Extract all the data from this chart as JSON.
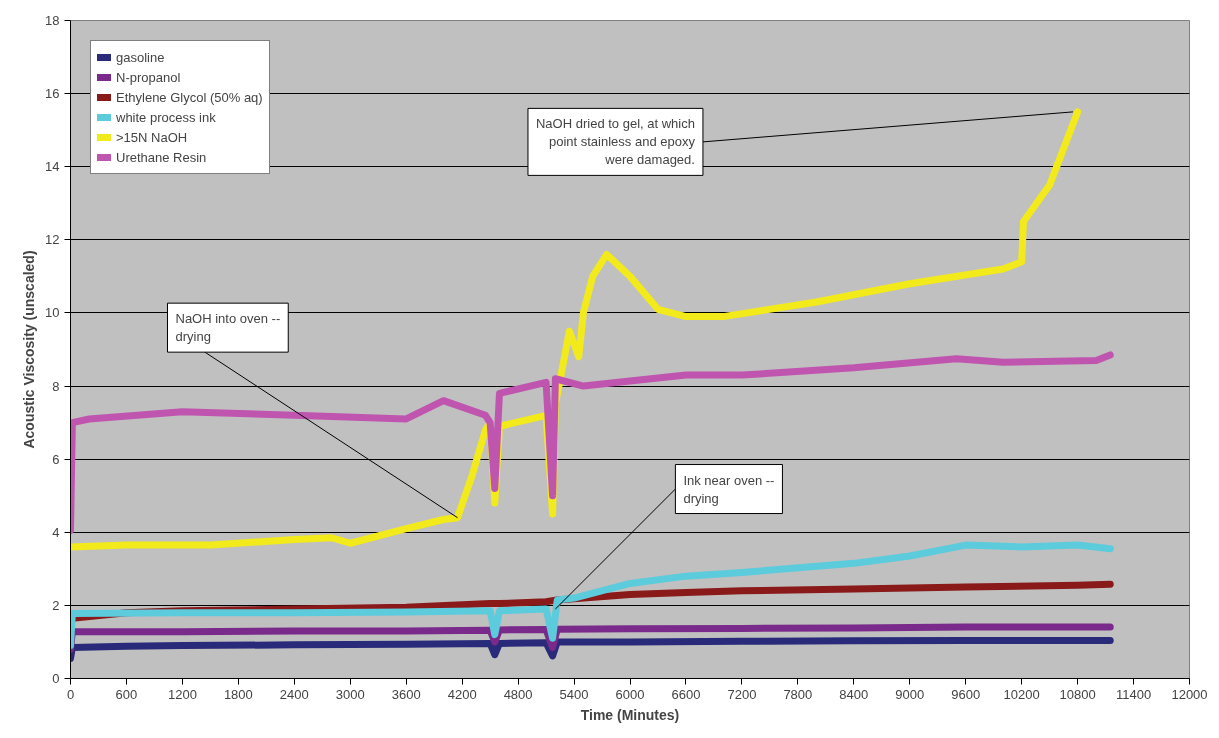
{
  "chart_data": {
    "type": "line",
    "xlabel": "Time (Minutes)",
    "ylabel": "Acoustic Viscosity (unscaled)",
    "xlim": [
      0,
      12000
    ],
    "ylim": [
      0,
      18
    ],
    "xticks": [
      0,
      600,
      1200,
      1800,
      2400,
      3000,
      3600,
      4200,
      4800,
      5400,
      6000,
      6600,
      7200,
      7800,
      8400,
      9000,
      9600,
      10200,
      10800,
      11400,
      12000
    ],
    "yticks": [
      0,
      2,
      4,
      6,
      8,
      10,
      12,
      14,
      16,
      18
    ],
    "grid": "y",
    "legend": "top left",
    "series": [
      {
        "name": "gasoline",
        "color": "#2a2a7a",
        "x": [
          0,
          20,
          600,
          1200,
          2400,
          3600,
          4200,
          4500,
          4550,
          4600,
          5100,
          5170,
          5220,
          6000,
          7200,
          8400,
          9600,
          10800,
          11150
        ],
        "values": [
          0.55,
          0.85,
          0.88,
          0.9,
          0.92,
          0.94,
          0.95,
          0.96,
          0.65,
          0.96,
          0.98,
          0.62,
          1.0,
          1.0,
          1.02,
          1.03,
          1.04,
          1.04,
          1.04
        ]
      },
      {
        "name": "N-propanol",
        "color": "#7a2a8a",
        "x": [
          0,
          20,
          1200,
          2400,
          3600,
          4500,
          4550,
          4600,
          5100,
          5170,
          5220,
          6000,
          7200,
          8400,
          9600,
          10800,
          11150
        ],
        "values": [
          0.8,
          1.28,
          1.28,
          1.3,
          1.3,
          1.32,
          1.0,
          1.33,
          1.34,
          0.85,
          1.35,
          1.36,
          1.37,
          1.38,
          1.41,
          1.41,
          1.41
        ]
      },
      {
        "name": "Ethylene Glycol (50% aq)",
        "color": "#8a1a1a",
        "x": [
          20,
          600,
          1200,
          2400,
          3600,
          4500,
          4600,
          5100,
          5220,
          6000,
          6600,
          7200,
          8400,
          9600,
          10800,
          11150
        ],
        "values": [
          1.65,
          1.8,
          1.85,
          1.9,
          1.95,
          2.05,
          2.05,
          2.1,
          2.15,
          2.3,
          2.35,
          2.4,
          2.45,
          2.5,
          2.55,
          2.58
        ]
      },
      {
        "name": "white process ink",
        "color": "#5ccbdc",
        "x": [
          0,
          20,
          1200,
          2400,
          3600,
          4500,
          4550,
          4600,
          5100,
          5170,
          5220,
          5400,
          6000,
          6600,
          7200,
          8400,
          9000,
          9600,
          10200,
          10800,
          11150
        ],
        "values": [
          0.9,
          1.78,
          1.8,
          1.8,
          1.82,
          1.85,
          1.2,
          1.85,
          1.9,
          1.1,
          2.15,
          2.2,
          2.6,
          2.8,
          2.9,
          3.15,
          3.35,
          3.65,
          3.6,
          3.65,
          3.55
        ]
      },
      {
        "name": ">15N NaOH",
        "color": "#f2ea1a",
        "x": [
          0,
          600,
          1500,
          2400,
          2800,
          3000,
          3600,
          4000,
          4150,
          4300,
          4450,
          4500,
          4550,
          4600,
          5100,
          5170,
          5200,
          5350,
          5450,
          5500,
          5600,
          5750,
          6000,
          6300,
          6600,
          7000,
          8000,
          9000,
          10000,
          10200,
          10220,
          10500,
          10800
        ],
        "values": [
          3.6,
          3.65,
          3.65,
          3.8,
          3.85,
          3.7,
          4.1,
          4.35,
          4.4,
          5.5,
          6.8,
          7.0,
          4.8,
          6.9,
          7.2,
          4.5,
          7.5,
          9.5,
          8.8,
          10.0,
          11.0,
          11.6,
          11.0,
          10.1,
          9.9,
          9.9,
          10.3,
          10.8,
          11.2,
          11.4,
          12.5,
          13.5,
          15.5
        ]
      },
      {
        "name": "Urethane Resin",
        "color": "#c055b0",
        "x": [
          0,
          20,
          200,
          1200,
          2400,
          3600,
          4000,
          4450,
          4500,
          4550,
          4600,
          5100,
          5170,
          5200,
          5500,
          6600,
          7200,
          8400,
          9500,
          10000,
          11000,
          11150
        ],
        "values": [
          4.05,
          7.0,
          7.1,
          7.3,
          7.2,
          7.1,
          7.6,
          7.2,
          7.0,
          5.2,
          7.8,
          8.1,
          5.0,
          8.2,
          8.0,
          8.3,
          8.3,
          8.5,
          8.75,
          8.65,
          8.7,
          8.85
        ]
      }
    ],
    "annotations": [
      {
        "text": "NaOH into oven -- drying",
        "x": 4150,
        "y": 4.4
      },
      {
        "text": "Ink near oven -- drying",
        "x": 5200,
        "y": 1.9
      },
      {
        "text": "NaOH dried to gel, at which point stainless and epoxy were damaged.",
        "x": 10750,
        "y": 15.5
      }
    ]
  }
}
